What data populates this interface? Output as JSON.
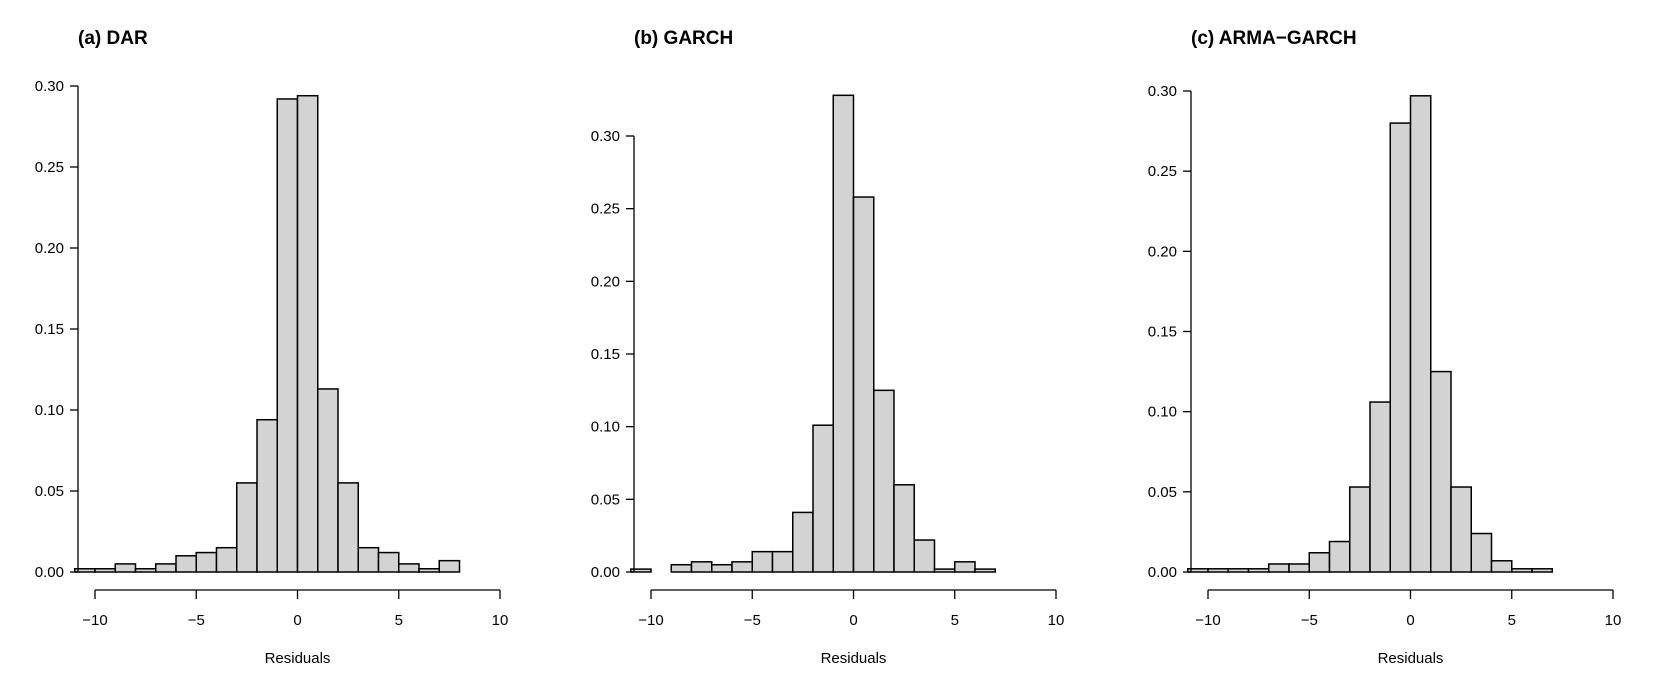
{
  "chart_data": [
    {
      "type": "bar",
      "title": "(a) DAR",
      "xlabel": "Residuals",
      "ylabel": "",
      "xlim": [
        -10,
        10
      ],
      "ylim": [
        0,
        0.3
      ],
      "xticks": [
        -10,
        -5,
        0,
        5,
        10
      ],
      "xtick_labels": [
        "−10",
        "−5",
        "0",
        "5",
        "10"
      ],
      "yticks": [
        0,
        0.05,
        0.1,
        0.15,
        0.2,
        0.25,
        0.3
      ],
      "ytick_labels": [
        "0.00",
        "0.05",
        "0.10",
        "0.15",
        "0.20",
        "0.25",
        "0.30"
      ],
      "bin_edges": [
        -11,
        -10,
        -9,
        -8,
        -7,
        -6,
        -5,
        -4,
        -3,
        -2,
        -1,
        0,
        1,
        2,
        3,
        4,
        5,
        6,
        7,
        8
      ],
      "values": [
        0.002,
        0.002,
        0.005,
        0.002,
        0.005,
        0.01,
        0.012,
        0.015,
        0.055,
        0.094,
        0.292,
        0.294,
        0.113,
        0.055,
        0.015,
        0.012,
        0.005,
        0.002,
        0.007
      ],
      "bar_color": "#d3d3d3",
      "grid": false
    },
    {
      "type": "bar",
      "title": "(b) GARCH",
      "xlabel": "Residuals",
      "ylabel": "",
      "xlim": [
        -10,
        10
      ],
      "ylim": [
        0,
        0.3
      ],
      "xticks": [
        -10,
        -5,
        0,
        5,
        10
      ],
      "xtick_labels": [
        "−10",
        "−5",
        "0",
        "5",
        "10"
      ],
      "yticks": [
        0,
        0.05,
        0.1,
        0.15,
        0.2,
        0.25,
        0.3
      ],
      "ytick_labels": [
        "0.00",
        "0.05",
        "0.10",
        "0.15",
        "0.20",
        "0.25",
        "0.30"
      ],
      "bin_edges": [
        -11,
        -10,
        -9,
        -8,
        -7,
        -6,
        -5,
        -4,
        -3,
        -2,
        -1,
        0,
        1,
        2,
        3,
        4,
        5,
        6,
        7
      ],
      "values": [
        0.002,
        0.0,
        0.005,
        0.007,
        0.005,
        0.007,
        0.014,
        0.014,
        0.041,
        0.101,
        0.328,
        0.258,
        0.125,
        0.06,
        0.022,
        0.002,
        0.007,
        0.002
      ],
      "bar_color": "#d3d3d3",
      "grid": false
    },
    {
      "type": "bar",
      "title": "(c) ARMA−GARCH",
      "xlabel": "Residuals",
      "ylabel": "",
      "xlim": [
        -10,
        10
      ],
      "ylim": [
        0,
        0.3
      ],
      "xticks": [
        -10,
        -5,
        0,
        5,
        10
      ],
      "xtick_labels": [
        "−10",
        "−5",
        "0",
        "5",
        "10"
      ],
      "yticks": [
        0,
        0.05,
        0.1,
        0.15,
        0.2,
        0.25,
        0.3
      ],
      "ytick_labels": [
        "0.00",
        "0.05",
        "0.10",
        "0.15",
        "0.20",
        "0.25",
        "0.30"
      ],
      "bin_edges": [
        -11,
        -10,
        -9,
        -8,
        -7,
        -6,
        -5,
        -4,
        -3,
        -2,
        -1,
        0,
        1,
        2,
        3,
        4,
        5,
        6,
        7
      ],
      "values": [
        0.002,
        0.002,
        0.002,
        0.002,
        0.005,
        0.005,
        0.012,
        0.019,
        0.053,
        0.106,
        0.28,
        0.297,
        0.125,
        0.053,
        0.024,
        0.007,
        0.002,
        0.002
      ],
      "bar_color": "#d3d3d3",
      "grid": false
    }
  ]
}
